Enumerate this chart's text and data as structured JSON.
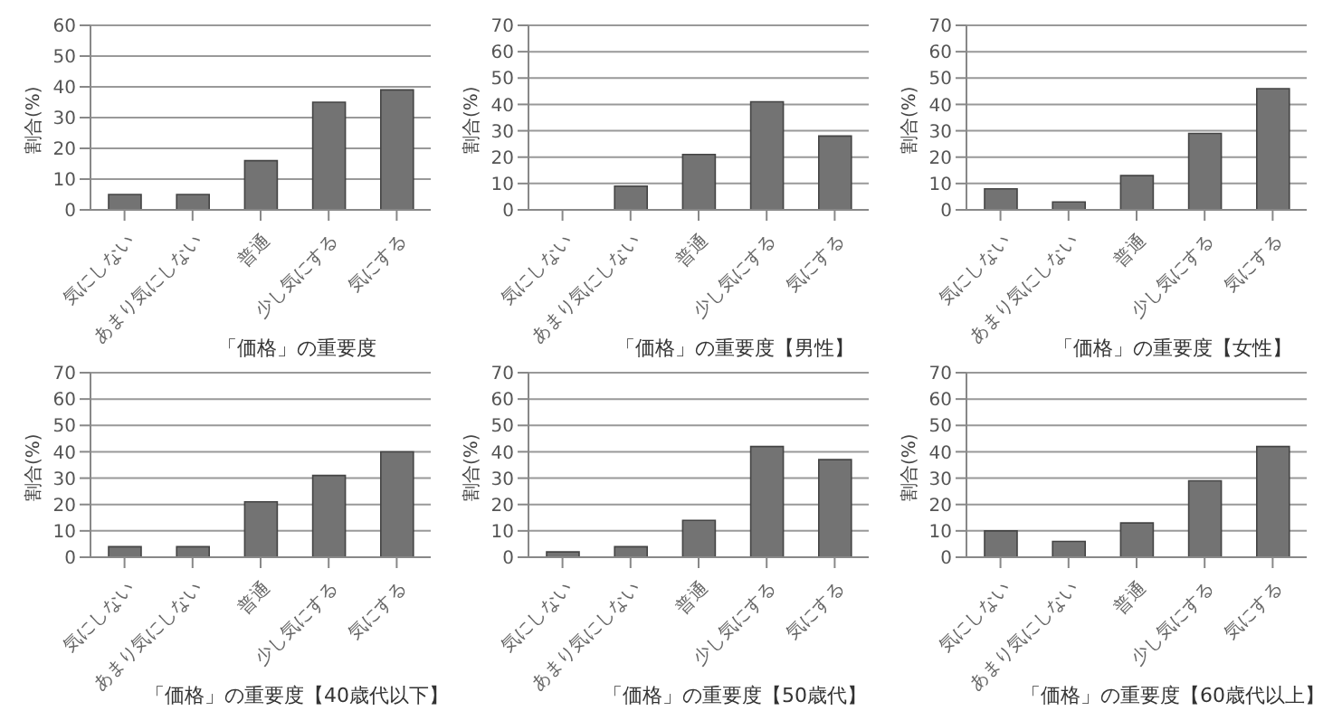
{
  "chart_data": [
    {
      "type": "bar",
      "xlabel": "「価格」の重要度",
      "ylabel": "割合(%)",
      "categories": [
        "気にしない",
        "あまり気にしない",
        "普通",
        "少し気にする",
        "気にする"
      ],
      "values": [
        5,
        5,
        16,
        35,
        39
      ],
      "color": "#737373",
      "ylim": [
        0,
        60
      ],
      "yticks": [
        0,
        10,
        20,
        30,
        40,
        50,
        60
      ],
      "grid": "y",
      "legend": false
    },
    {
      "type": "bar",
      "xlabel": "「価格」の重要度【男性】",
      "ylabel": "割合(%)",
      "categories": [
        "気にしない",
        "あまり気にしない",
        "普通",
        "少し気にする",
        "気にする"
      ],
      "values": [
        0,
        9,
        21,
        41,
        28
      ],
      "color": "#737373",
      "ylim": [
        0,
        70
      ],
      "yticks": [
        0,
        10,
        20,
        30,
        40,
        50,
        60,
        70
      ],
      "grid": "y",
      "legend": false
    },
    {
      "type": "bar",
      "xlabel": "「価格」の重要度【女性】",
      "ylabel": "割合(%)",
      "categories": [
        "気にしない",
        "あまり気にしない",
        "普通",
        "少し気にする",
        "気にする"
      ],
      "values": [
        8,
        3,
        13,
        29,
        46
      ],
      "color": "#737373",
      "ylim": [
        0,
        70
      ],
      "yticks": [
        0,
        10,
        20,
        30,
        40,
        50,
        60,
        70
      ],
      "grid": "y",
      "legend": false
    },
    {
      "type": "bar",
      "xlabel": "「価格」の重要度【40歳代以下】",
      "ylabel": "割合(%)",
      "categories": [
        "気にしない",
        "あまり気にしない",
        "普通",
        "少し気にする",
        "気にする"
      ],
      "values": [
        4,
        4,
        21,
        31,
        40
      ],
      "color": "#737373",
      "ylim": [
        0,
        70
      ],
      "yticks": [
        0,
        10,
        20,
        30,
        40,
        50,
        60,
        70
      ],
      "grid": "y",
      "legend": false
    },
    {
      "type": "bar",
      "xlabel": "「価格」の重要度【50歳代】",
      "ylabel": "割合(%)",
      "categories": [
        "気にしない",
        "あまり気にしない",
        "普通",
        "少し気にする",
        "気にする"
      ],
      "values": [
        2,
        4,
        14,
        42,
        37
      ],
      "color": "#737373",
      "ylim": [
        0,
        70
      ],
      "yticks": [
        0,
        10,
        20,
        30,
        40,
        50,
        60,
        70
      ],
      "grid": "y",
      "legend": false
    },
    {
      "type": "bar",
      "xlabel": "「価格」の重要度【60歳代以上】",
      "ylabel": "割合(%)",
      "categories": [
        "気にしない",
        "あまり気にしない",
        "普通",
        "少し気にする",
        "気にする"
      ],
      "values": [
        10,
        6,
        13,
        29,
        42
      ],
      "color": "#737373",
      "ylim": [
        0,
        70
      ],
      "yticks": [
        0,
        10,
        20,
        30,
        40,
        50,
        60,
        70
      ],
      "grid": "y",
      "legend": false
    }
  ]
}
